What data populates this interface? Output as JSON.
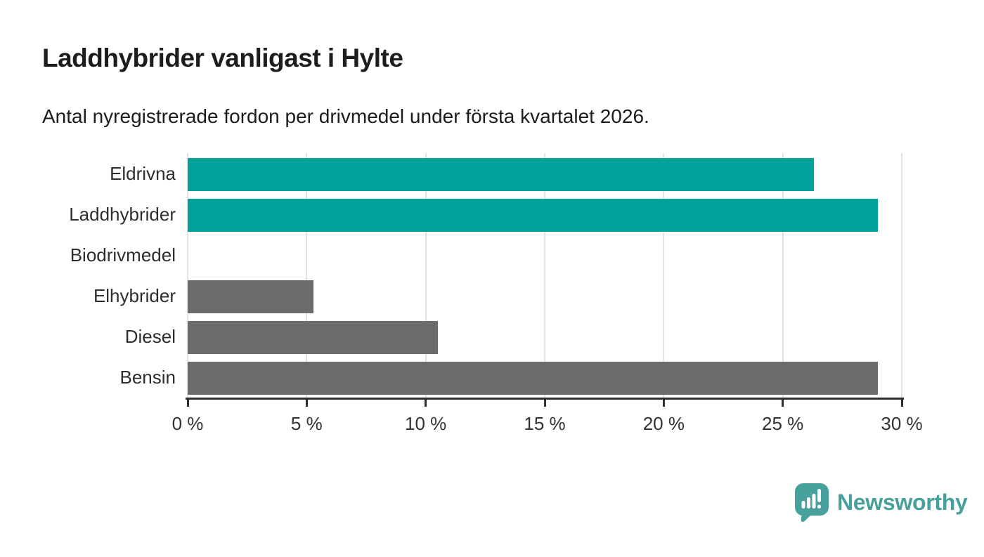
{
  "header": {
    "title": "Laddhybrider vanligast i Hylte",
    "subtitle": "Antal nyregistrerade fordon per drivmedel under första kvartalet 2026."
  },
  "chart_data": {
    "type": "bar",
    "orientation": "horizontal",
    "categories": [
      "Eldrivna",
      "Laddhybrider",
      "Biodrivmedel",
      "Elhybrider",
      "Diesel",
      "Bensin"
    ],
    "values": [
      26.3,
      29.0,
      0,
      5.3,
      10.5,
      29.0
    ],
    "bar_colors": [
      "#00A29A",
      "#00A29A",
      "#6E6B6E",
      "#6E6B6E",
      "#6E6B6E",
      "#6E6B6E"
    ],
    "title": "Laddhybrider vanligast i Hylte",
    "xlabel": "",
    "ylabel": "",
    "xlim": [
      0,
      30
    ],
    "x_ticks": [
      0,
      5,
      10,
      15,
      20,
      25,
      30
    ],
    "x_tick_labels": [
      "0 %",
      "5 %",
      "10 %",
      "15 %",
      "20 %",
      "25 %",
      "30 %"
    ],
    "grid": "vertical",
    "legend": "none"
  },
  "colors": {
    "highlight": "#00A29A",
    "default_bar": "#6E6B6E",
    "grid": "#E3E3E3",
    "axis": "#2E2E2E",
    "title_text": "#1D1D1B",
    "tick_text": "#333333",
    "brand": "#47A09A"
  },
  "footer": {
    "brand": "Newsworthy"
  }
}
